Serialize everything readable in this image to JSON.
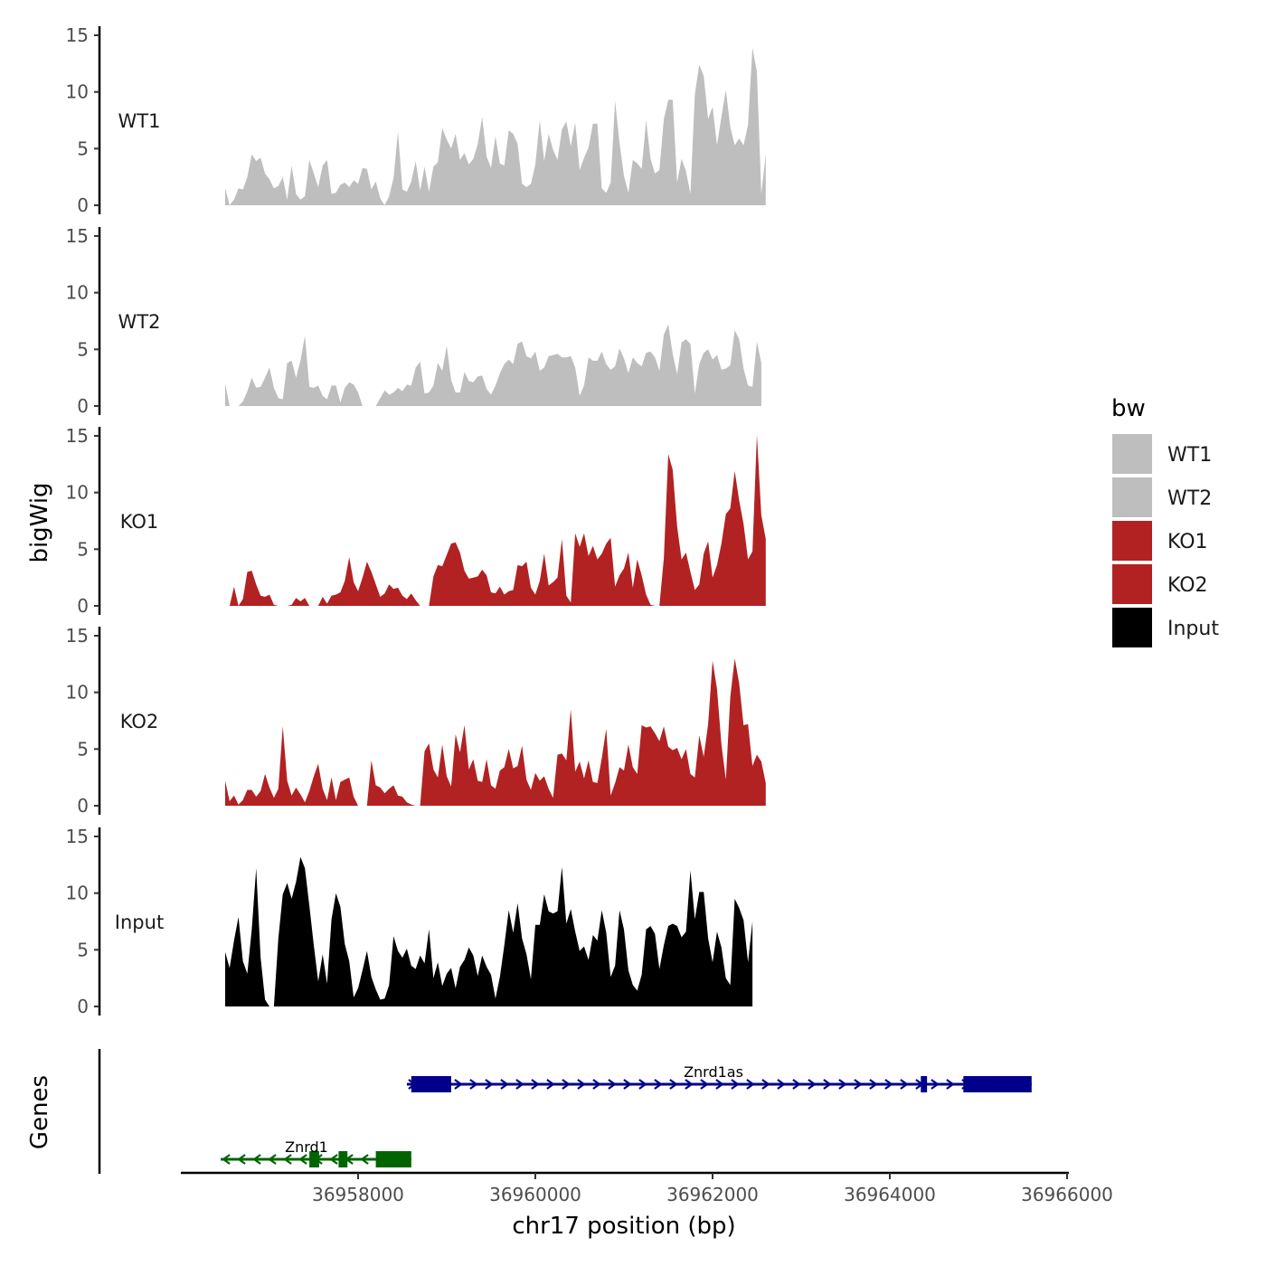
{
  "chart_data": {
    "type": "area",
    "chromosome": "chr17",
    "xlabel": "chr17 position (bp)",
    "ylabel": "bigWig",
    "genes_label": "Genes",
    "xlim": [
      36956000,
      36966000
    ],
    "x_ticks": [
      36958000,
      36960000,
      36962000,
      36964000,
      36966000
    ],
    "x_tick_labels": [
      "36958000",
      "36960000",
      "36962000",
      "36964000",
      "36966000"
    ],
    "ylim": [
      0,
      15
    ],
    "y_ticks": [
      0,
      5,
      10,
      15
    ],
    "y_tick_labels": [
      "0",
      "5",
      "10",
      "15"
    ],
    "x_start": 36956500,
    "x_step": 50,
    "legend": {
      "title": "bw",
      "entries": [
        {
          "label": "WT1",
          "color": "#bebebe"
        },
        {
          "label": "WT2",
          "color": "#bebebe"
        },
        {
          "label": "KO1",
          "color": "#b22222"
        },
        {
          "label": "KO2",
          "color": "#b22222"
        },
        {
          "label": "Input",
          "color": "#000000"
        }
      ]
    },
    "series": [
      {
        "name": "WT1",
        "color": "#bebebe",
        "values": [
          1.5,
          0,
          0.5,
          1.5,
          1.4,
          2.5,
          4.5,
          3.9,
          4.2,
          2.8,
          2.3,
          1.5,
          1.7,
          2.5,
          0.5,
          3.5,
          1,
          0.5,
          0.8,
          4,
          2.8,
          1.6,
          3.5,
          4,
          1,
          1.1,
          1.8,
          2,
          1.6,
          2.2,
          1.9,
          3.3,
          3.2,
          1.4,
          2.1,
          0.6,
          0,
          0.8,
          2.4,
          6.5,
          1.4,
          1.2,
          2.1,
          3.9,
          1.3,
          3.4,
          1.2,
          3.4,
          3.8,
          6.8,
          5.8,
          5,
          6.3,
          4,
          4.6,
          3.6,
          4.1,
          5.4,
          7.8,
          4.3,
          3.3,
          6.1,
          3.7,
          3.5,
          6.6,
          6.3,
          5.4,
          1.9,
          1.6,
          1.9,
          3.6,
          7.5,
          3.9,
          6.3,
          4.9,
          4,
          6.7,
          7.4,
          5.2,
          7.3,
          3.1,
          4.2,
          5.1,
          7.2,
          7.2,
          1.5,
          1.1,
          2,
          9.2,
          5.5,
          2.6,
          1.1,
          4,
          3.7,
          3.2,
          7.5,
          4.1,
          2.8,
          3.1,
          7.6,
          9.3,
          9.3,
          2,
          4.1,
          3,
          1,
          9.8,
          12.4,
          11.4,
          7.6,
          8.7,
          5.3,
          7.8,
          10.2,
          6.9,
          5.3,
          5.9,
          5.3,
          7.1,
          13.9,
          11.8,
          1,
          4.5
        ]
      },
      {
        "name": "WT2",
        "color": "#bebebe",
        "values": [
          2,
          0,
          0,
          0,
          0.4,
          1.3,
          2.5,
          1.6,
          1.7,
          2.5,
          3.4,
          1.6,
          0.7,
          0.6,
          3.8,
          4,
          2.5,
          4,
          6.2,
          1.7,
          1.6,
          1.8,
          0.9,
          0.6,
          1.8,
          1.8,
          0.3,
          1.6,
          2.1,
          1.9,
          1.2,
          0,
          0,
          0,
          0,
          0.7,
          1.4,
          1,
          1.2,
          1.6,
          1.3,
          1.9,
          1.8,
          3.4,
          3.9,
          1.1,
          1.2,
          1.8,
          3.8,
          3.1,
          5.3,
          2.3,
          1.2,
          1.2,
          3,
          2.2,
          2.1,
          2.6,
          2.7,
          1.5,
          1,
          1.8,
          2.9,
          3.7,
          4.1,
          3.7,
          5.5,
          5.7,
          4.4,
          4.2,
          4.8,
          3.1,
          3.4,
          4.4,
          4.5,
          4.6,
          4.3,
          4.3,
          4.4,
          3.4,
          0.9,
          1.8,
          4.3,
          4,
          4,
          4.8,
          3.7,
          3.2,
          3.5,
          5.1,
          4.2,
          2.9,
          4.3,
          3.8,
          3.5,
          4.7,
          4.8,
          4.3,
          3.1,
          6.3,
          7.2,
          4.6,
          2.8,
          5.6,
          5.9,
          5.5,
          1.1,
          3.7,
          4.7,
          5,
          4.1,
          4.5,
          3.2,
          3.3,
          3.6,
          6.7,
          5.9,
          3.3,
          1.8,
          1.7,
          5.7,
          3.8
        ]
      },
      {
        "name": "KO1",
        "color": "#b22222",
        "values": [
          0,
          0,
          1.7,
          0,
          0.6,
          3,
          3.1,
          1.9,
          0.9,
          0.8,
          1,
          0.1,
          0,
          0,
          0,
          0.1,
          0.7,
          0.4,
          0.7,
          0,
          0,
          0,
          0.8,
          0.2,
          0.9,
          1,
          1.2,
          2.2,
          4.3,
          2.1,
          1.3,
          2.5,
          3.9,
          3,
          1.9,
          0.8,
          1.1,
          1.9,
          1.5,
          1.6,
          0.9,
          0.6,
          1.1,
          0.5,
          0,
          0,
          0,
          2.6,
          3.6,
          3.5,
          4.5,
          5.5,
          5.6,
          4.7,
          3.1,
          2.4,
          2.5,
          2.6,
          3.2,
          2.7,
          1.2,
          1.1,
          1.7,
          1,
          1.3,
          1.4,
          3.6,
          3.5,
          3.9,
          1.6,
          1,
          2.2,
          4.6,
          1.8,
          2.1,
          2.5,
          5.9,
          0.9,
          0.3,
          6.4,
          5.2,
          6.4,
          4.4,
          5.3,
          4.1,
          4.6,
          5.5,
          6,
          1.7,
          2.7,
          3.3,
          4.7,
          1.6,
          4.1,
          2.7,
          1,
          0.1,
          0,
          0,
          4.2,
          13.4,
          12,
          7,
          4.1,
          4.7,
          3,
          1.4,
          1.9,
          4.6,
          5.7,
          2.5,
          3.6,
          5.5,
          8.1,
          8.6,
          11.9,
          9.3,
          7.2,
          4.1,
          4.8,
          15.1,
          8,
          5.9
        ]
      },
      {
        "name": "KO2",
        "color": "#b22222",
        "values": [
          2.2,
          0.4,
          0.9,
          0.1,
          0.5,
          1.4,
          1.4,
          0.8,
          1.3,
          2.8,
          1.6,
          0.7,
          1.5,
          7,
          2.2,
          0.9,
          1.6,
          1,
          0.3,
          1.3,
          2.6,
          3.7,
          1.5,
          0.5,
          2.5,
          0.5,
          2.1,
          2.3,
          2.5,
          0.8,
          0,
          0,
          0,
          4,
          1.8,
          1.6,
          1.1,
          1.5,
          1.8,
          0.9,
          0.8,
          0.3,
          0.1,
          0,
          0,
          4.8,
          5.5,
          3.2,
          2.5,
          5.4,
          2.6,
          1.7,
          6.3,
          4.7,
          7.1,
          3.2,
          4.1,
          2.2,
          2.1,
          4.1,
          1.8,
          1.5,
          3.1,
          3.4,
          5,
          3.3,
          3.5,
          5.3,
          2.3,
          1.4,
          2.9,
          2.2,
          2.6,
          1.5,
          0.7,
          4.5,
          4.6,
          4,
          8.5,
          3,
          3.9,
          2.4,
          4,
          2.1,
          2,
          4.2,
          6.8,
          0.9,
          2,
          3.4,
          3.1,
          5.4,
          3.4,
          2.8,
          7.1,
          6.9,
          7,
          6.4,
          5.7,
          7,
          5.2,
          4.9,
          5.1,
          4.1,
          5,
          2.8,
          2.5,
          6.2,
          4.3,
          7.2,
          12.8,
          10.3,
          5.4,
          2.3,
          9.6,
          13,
          10.8,
          7.1,
          7.2,
          3.5,
          4.5,
          3.9,
          2
        ]
      },
      {
        "name": "Input",
        "color": "#000000",
        "values": [
          4.8,
          3.4,
          5.8,
          7.9,
          4,
          2.9,
          6.8,
          12.2,
          4.3,
          0.6,
          0,
          0,
          6,
          9.9,
          10.9,
          9.5,
          11,
          13.2,
          12.2,
          8.9,
          5.4,
          2.2,
          4.6,
          2,
          7.7,
          10,
          8.8,
          5.5,
          4,
          0.8,
          1.6,
          3.2,
          4.9,
          2.6,
          1.5,
          0.6,
          0.7,
          1.9,
          6.2,
          4.9,
          4.3,
          5.1,
          3.6,
          3.3,
          4.5,
          3.8,
          6.8,
          2.5,
          3.9,
          1.8,
          2.9,
          3.4,
          1.6,
          3.5,
          4.1,
          5.2,
          4.5,
          2.7,
          4.5,
          3.5,
          2.8,
          0.7,
          2.6,
          5.4,
          8.5,
          6.5,
          9.1,
          6,
          4.6,
          2.4,
          7.2,
          7.2,
          9.9,
          8.4,
          8.2,
          8.4,
          12.3,
          7.3,
          8.6,
          6.6,
          4.9,
          5.3,
          4.1,
          6.3,
          5.8,
          8.5,
          6.5,
          2.6,
          3.6,
          8.5,
          6.8,
          3.2,
          1.9,
          1.4,
          2.8,
          6.8,
          7.1,
          6.4,
          3.3,
          5.4,
          7.1,
          7.3,
          7.1,
          6.1,
          6.6,
          12,
          7.7,
          10.1,
          10.1,
          6,
          3.9,
          6.6,
          5.2,
          2.5,
          1.9,
          9.5,
          8.7,
          7.6,
          3.9,
          7.5
        ]
      }
    ],
    "genes": [
      {
        "name": "Znrd1as",
        "strand": "+",
        "color": "#00008b",
        "start": 36958550,
        "end": 36965600,
        "exons": [
          [
            36958600,
            36959050
          ],
          [
            36964350,
            36964420
          ],
          [
            36964830,
            36965600
          ]
        ]
      },
      {
        "name": "Znrd1",
        "strand": "-",
        "color": "#006400",
        "start": 36956450,
        "end": 36958600,
        "exons": [
          [
            36957450,
            36957560
          ],
          [
            36957780,
            36957880
          ],
          [
            36958200,
            36958600
          ]
        ]
      }
    ]
  }
}
